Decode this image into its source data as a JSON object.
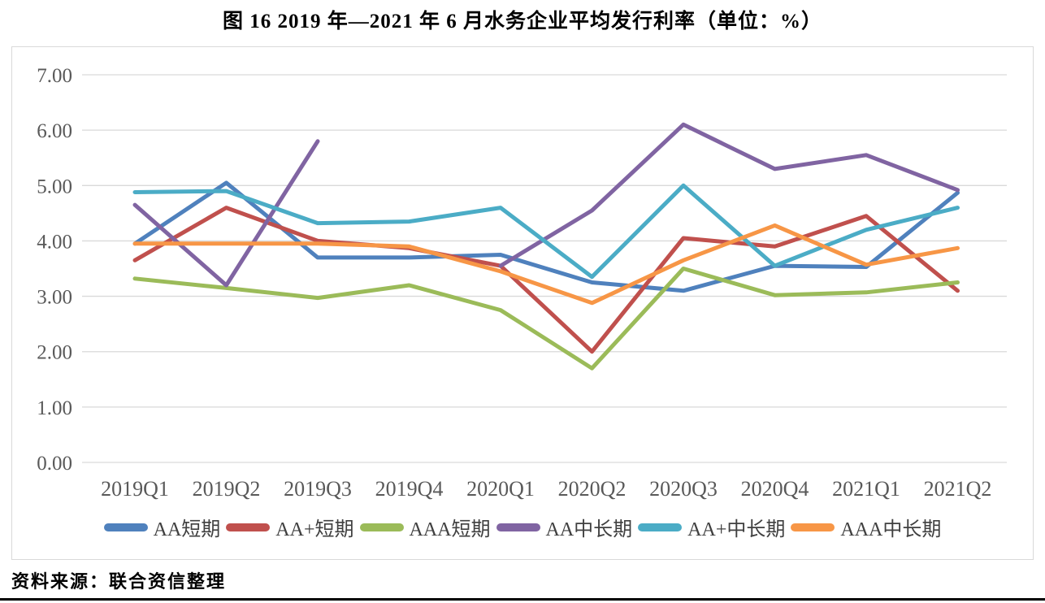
{
  "title": "图 16  2019 年—2021 年 6 月水务企业平均发行利率（单位：%）",
  "source": "资料来源：联合资信整理",
  "chart_data": {
    "type": "line",
    "title": "图 16  2019 年—2021 年 6 月水务企业平均发行利率（单位：%）",
    "unit": "%",
    "xlabel": "",
    "ylabel": "",
    "ylim": [
      0,
      7
    ],
    "y_tick_labels": [
      "7.00",
      "6.00",
      "5.00",
      "4.00",
      "3.00",
      "2.00",
      "1.00",
      "0.00"
    ],
    "grid": true,
    "legend_position": "bottom",
    "categories": [
      "2019Q1",
      "2019Q2",
      "2019Q3",
      "2019Q4",
      "2020Q1",
      "2020Q2",
      "2020Q3",
      "2020Q4",
      "2021Q1",
      "2021Q2"
    ],
    "series": [
      {
        "name": "AA短期",
        "color": "#4F81BD",
        "values": [
          3.95,
          5.05,
          3.7,
          3.7,
          3.75,
          3.25,
          3.1,
          3.55,
          3.53,
          4.87
        ]
      },
      {
        "name": "AA+短期",
        "color": "#C0504D",
        "values": [
          3.65,
          4.6,
          4.0,
          3.87,
          3.55,
          2.0,
          4.05,
          3.9,
          4.45,
          3.1
        ]
      },
      {
        "name": "AAA短期",
        "color": "#9BBB59",
        "values": [
          3.32,
          3.15,
          2.97,
          3.2,
          2.75,
          1.7,
          3.5,
          3.02,
          3.07,
          3.25
        ]
      },
      {
        "name": "AA中长期",
        "color": "#8064A2",
        "values": [
          4.65,
          3.2,
          5.8,
          null,
          3.55,
          4.55,
          6.1,
          5.3,
          5.55,
          4.92
        ]
      },
      {
        "name": "AA+中长期",
        "color": "#4BACC6",
        "values": [
          4.88,
          4.9,
          4.32,
          4.35,
          4.6,
          3.35,
          5.0,
          3.55,
          4.2,
          4.6
        ]
      },
      {
        "name": "AAA中长期",
        "color": "#F79646",
        "values": [
          3.95,
          3.95,
          3.95,
          3.9,
          3.45,
          2.88,
          3.65,
          4.28,
          3.57,
          3.87
        ]
      }
    ]
  }
}
